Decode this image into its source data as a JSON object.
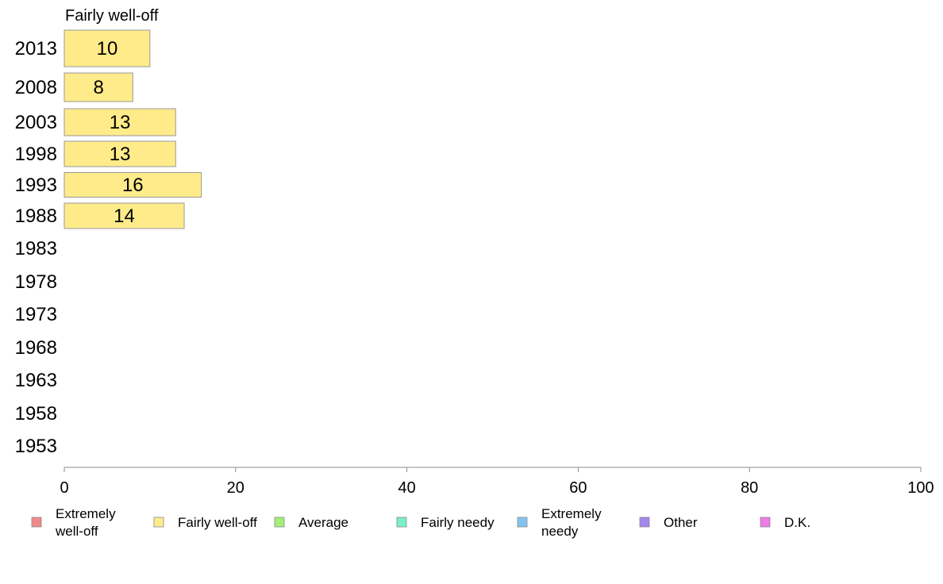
{
  "chart_data": {
    "type": "bar",
    "orientation": "horizontal",
    "title": "Fairly well-off",
    "categories": [
      "2013",
      "2008",
      "2003",
      "1998",
      "1993",
      "1988",
      "1983",
      "1978",
      "1973",
      "1968",
      "1963",
      "1958",
      "1953"
    ],
    "series": [
      {
        "name": "Fairly well-off",
        "color": "#ffeb8a",
        "values": [
          10,
          8,
          13,
          13,
          16,
          14,
          null,
          null,
          null,
          null,
          null,
          null,
          null
        ],
        "labels": [
          "10",
          "8",
          "13",
          "13",
          "16",
          "14",
          "",
          "",
          "",
          "",
          "",
          "",
          ""
        ]
      }
    ],
    "xlim": [
      0,
      100
    ],
    "xticks": [
      "0",
      "20",
      "40",
      "60",
      "80",
      "100"
    ],
    "grid": false,
    "legend_position": "bottom",
    "legend": [
      {
        "label": "Extremely\nwell-off",
        "color": "#f08a8a"
      },
      {
        "label": "Fairly well-off",
        "color": "#ffeb8a"
      },
      {
        "label": "Average",
        "color": "#a2f07a"
      },
      {
        "label": "Fairly needy",
        "color": "#7af0c8"
      },
      {
        "label": "Extremely\nneedy",
        "color": "#82c4f0"
      },
      {
        "label": "Other",
        "color": "#a486f0"
      },
      {
        "label": "D.K.",
        "color": "#f07ae6"
      }
    ]
  }
}
